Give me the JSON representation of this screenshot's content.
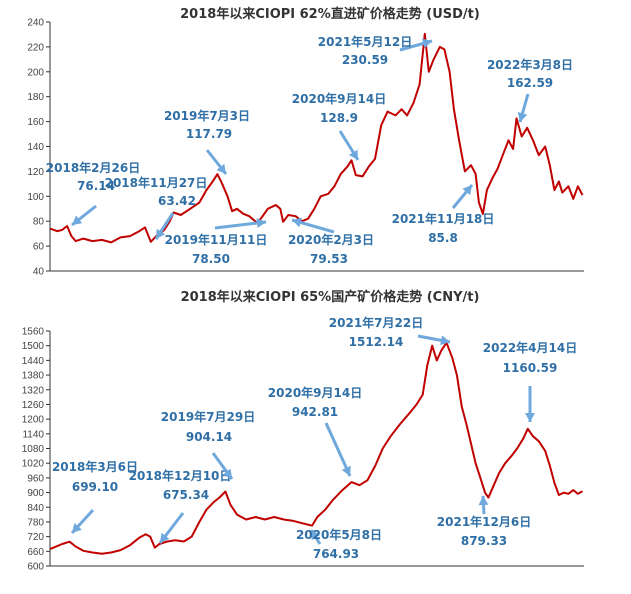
{
  "chart_data": [
    {
      "type": "line",
      "title": "2018年以来CIOPI 62%直进矿价格走势 (USD/t)",
      "xlabel": "",
      "ylabel": "",
      "ylim": [
        40,
        240
      ],
      "y_ticks": [
        40,
        60,
        80,
        100,
        120,
        140,
        160,
        180,
        200,
        220,
        240
      ],
      "x_range": [
        "2018-01-01",
        "2022-10-15"
      ],
      "grid": false,
      "series": [
        {
          "color": "#c00000",
          "points": [
            [
              "2018-01-02",
              74
            ],
            [
              "2018-01-25",
              72
            ],
            [
              "2018-02-10",
              73
            ],
            [
              "2018-02-26",
              76.14
            ],
            [
              "2018-03-12",
              68
            ],
            [
              "2018-03-26",
              64
            ],
            [
              "2018-04-20",
              66
            ],
            [
              "2018-05-20",
              64
            ],
            [
              "2018-06-20",
              65
            ],
            [
              "2018-07-20",
              63
            ],
            [
              "2018-08-20",
              67
            ],
            [
              "2018-09-20",
              68
            ],
            [
              "2018-10-20",
              72
            ],
            [
              "2018-11-08",
              75
            ],
            [
              "2018-11-27",
              63.42
            ],
            [
              "2018-12-15",
              68
            ],
            [
              "2019-01-10",
              73
            ],
            [
              "2019-01-28",
              80
            ],
            [
              "2019-02-10",
              87
            ],
            [
              "2019-03-05",
              85
            ],
            [
              "2019-04-05",
              90
            ],
            [
              "2019-05-05",
              95
            ],
            [
              "2019-05-28",
              105
            ],
            [
              "2019-06-12",
              110
            ],
            [
              "2019-07-03",
              117.79
            ],
            [
              "2019-07-15",
              112
            ],
            [
              "2019-08-05",
              100
            ],
            [
              "2019-08-20",
              88
            ],
            [
              "2019-09-05",
              90
            ],
            [
              "2019-09-25",
              86
            ],
            [
              "2019-10-15",
              84
            ],
            [
              "2019-11-11",
              78.5
            ],
            [
              "2019-11-28",
              84
            ],
            [
              "2019-12-15",
              90
            ],
            [
              "2020-01-10",
              93
            ],
            [
              "2020-01-25",
              90
            ],
            [
              "2020-02-03",
              79.53
            ],
            [
              "2020-02-20",
              85
            ],
            [
              "2020-03-15",
              84
            ],
            [
              "2020-04-05",
              80
            ],
            [
              "2020-04-25",
              82
            ],
            [
              "2020-05-15",
              90
            ],
            [
              "2020-06-05",
              100
            ],
            [
              "2020-06-30",
              102
            ],
            [
              "2020-07-20",
              108
            ],
            [
              "2020-08-10",
              118
            ],
            [
              "2020-09-01",
              124
            ],
            [
              "2020-09-14",
              128.9
            ],
            [
              "2020-09-28",
              117
            ],
            [
              "2020-10-20",
              116
            ],
            [
              "2020-11-10",
              124
            ],
            [
              "2020-11-30",
              130
            ],
            [
              "2020-12-20",
              157
            ],
            [
              "2021-01-10",
              168
            ],
            [
              "2021-02-05",
              165
            ],
            [
              "2021-02-25",
              170
            ],
            [
              "2021-03-15",
              165
            ],
            [
              "2021-04-05",
              175
            ],
            [
              "2021-04-25",
              190
            ],
            [
              "2021-05-12",
              230.59
            ],
            [
              "2021-05-25",
              200
            ],
            [
              "2021-06-10",
              210
            ],
            [
              "2021-06-30",
              220
            ],
            [
              "2021-07-15",
              218
            ],
            [
              "2021-08-01",
              200
            ],
            [
              "2021-08-15",
              170
            ],
            [
              "2021-09-01",
              145
            ],
            [
              "2021-09-20",
              120
            ],
            [
              "2021-10-10",
              125
            ],
            [
              "2021-10-25",
              118
            ],
            [
              "2021-11-05",
              95
            ],
            [
              "2021-11-18",
              85.8
            ],
            [
              "2021-12-01",
              105
            ],
            [
              "2021-12-20",
              115
            ],
            [
              "2022-01-05",
              122
            ],
            [
              "2022-01-25",
              135
            ],
            [
              "2022-02-10",
              145
            ],
            [
              "2022-02-25",
              138
            ],
            [
              "2022-03-08",
              162.59
            ],
            [
              "2022-03-25",
              148
            ],
            [
              "2022-04-12",
              155
            ],
            [
              "2022-05-01",
              145
            ],
            [
              "2022-05-20",
              133
            ],
            [
              "2022-06-10",
              140
            ],
            [
              "2022-06-25",
              125
            ],
            [
              "2022-07-10",
              105
            ],
            [
              "2022-07-25",
              112
            ],
            [
              "2022-08-05",
              103
            ],
            [
              "2022-08-25",
              108
            ],
            [
              "2022-09-10",
              98
            ],
            [
              "2022-09-25",
              108
            ],
            [
              "2022-10-10",
              101
            ]
          ]
        }
      ],
      "annotations": [
        {
          "date": "2018年2月26日",
          "value": "76.14",
          "x": "2018-02-26",
          "y": 76.14
        },
        {
          "date": "2018年11月27日",
          "value": "63.42",
          "x": "2018-11-27",
          "y": 63.42
        },
        {
          "date": "2019年7月3日",
          "value": "117.79",
          "x": "2019-07-03",
          "y": 117.79
        },
        {
          "date": "2019年11月11日",
          "value": "78.50",
          "x": "2019-11-11",
          "y": 78.5
        },
        {
          "date": "2020年2月3日",
          "value": "79.53",
          "x": "2020-02-03",
          "y": 79.53
        },
        {
          "date": "2020年9月14日",
          "value": "128.9",
          "x": "2020-09-14",
          "y": 128.9
        },
        {
          "date": "2021年5月12日",
          "value": "230.59",
          "x": "2021-05-12",
          "y": 230.59
        },
        {
          "date": "2021年11月18日",
          "value": "85.8",
          "x": "2021-11-18",
          "y": 85.8
        },
        {
          "date": "2022年3月8日",
          "value": "162.59",
          "x": "2022-03-08",
          "y": 162.59
        }
      ]
    },
    {
      "type": "line",
      "title": "2018年以来CIOPI 65%国产矿价格走势 (CNY/t)",
      "xlabel": "",
      "ylabel": "",
      "ylim": [
        600,
        1560
      ],
      "y_ticks": [
        600,
        660,
        720,
        780,
        840,
        900,
        960,
        1020,
        1080,
        1140,
        1200,
        1260,
        1320,
        1380,
        1440,
        1500,
        1560
      ],
      "x_range": [
        "2018-01-01",
        "2022-10-15"
      ],
      "grid": false,
      "series": [
        {
          "color": "#c00000",
          "points": [
            [
              "2018-01-02",
              670
            ],
            [
              "2018-02-10",
              690
            ],
            [
              "2018-03-06",
              699.1
            ],
            [
              "2018-03-25",
              680
            ],
            [
              "2018-04-20",
              662
            ],
            [
              "2018-05-20",
              655
            ],
            [
              "2018-06-20",
              650
            ],
            [
              "2018-07-20",
              655
            ],
            [
              "2018-08-20",
              665
            ],
            [
              "2018-09-20",
              685
            ],
            [
              "2018-10-20",
              715
            ],
            [
              "2018-11-10",
              730
            ],
            [
              "2018-11-25",
              720
            ],
            [
              "2018-12-10",
              675.34
            ],
            [
              "2018-12-25",
              690
            ],
            [
              "2019-01-20",
              700
            ],
            [
              "2019-02-15",
              705
            ],
            [
              "2019-03-15",
              700
            ],
            [
              "2019-04-10",
              720
            ],
            [
              "2019-05-05",
              780
            ],
            [
              "2019-05-28",
              830
            ],
            [
              "2019-06-20",
              860
            ],
            [
              "2019-07-10",
              880
            ],
            [
              "2019-07-29",
              904.14
            ],
            [
              "2019-08-15",
              850
            ],
            [
              "2019-09-05",
              810
            ],
            [
              "2019-10-05",
              790
            ],
            [
              "2019-11-05",
              800
            ],
            [
              "2019-12-05",
              790
            ],
            [
              "2020-01-05",
              800
            ],
            [
              "2020-02-05",
              790
            ],
            [
              "2020-03-05",
              785
            ],
            [
              "2020-04-05",
              775
            ],
            [
              "2020-05-08",
              764.93
            ],
            [
              "2020-05-25",
              800
            ],
            [
              "2020-06-20",
              830
            ],
            [
              "2020-07-15",
              870
            ],
            [
              "2020-08-15",
              910
            ],
            [
              "2020-09-14",
              942.81
            ],
            [
              "2020-10-10",
              930
            ],
            [
              "2020-11-05",
              950
            ],
            [
              "2020-12-01",
              1010
            ],
            [
              "2020-12-25",
              1080
            ],
            [
              "2021-01-20",
              1130
            ],
            [
              "2021-02-20",
              1180
            ],
            [
              "2021-03-20",
              1220
            ],
            [
              "2021-04-15",
              1260
            ],
            [
              "2021-05-05",
              1300
            ],
            [
              "2021-05-20",
              1420
            ],
            [
              "2021-06-05",
              1500
            ],
            [
              "2021-06-20",
              1440
            ],
            [
              "2021-07-05",
              1480
            ],
            [
              "2021-07-22",
              1512.14
            ],
            [
              "2021-08-10",
              1450
            ],
            [
              "2021-08-25",
              1380
            ],
            [
              "2021-09-10",
              1250
            ],
            [
              "2021-09-25",
              1180
            ],
            [
              "2021-10-10",
              1100
            ],
            [
              "2021-10-25",
              1020
            ],
            [
              "2021-11-10",
              960
            ],
            [
              "2021-11-25",
              900
            ],
            [
              "2021-12-06",
              879.33
            ],
            [
              "2021-12-20",
              920
            ],
            [
              "2022-01-10",
              980
            ],
            [
              "2022-01-30",
              1020
            ],
            [
              "2022-02-20",
              1050
            ],
            [
              "2022-03-10",
              1080
            ],
            [
              "2022-03-30",
              1120
            ],
            [
              "2022-04-14",
              1160.59
            ],
            [
              "2022-05-01",
              1130
            ],
            [
              "2022-05-20",
              1110
            ],
            [
              "2022-06-10",
              1070
            ],
            [
              "2022-06-25",
              1010
            ],
            [
              "2022-07-10",
              940
            ],
            [
              "2022-07-25",
              890
            ],
            [
              "2022-08-10",
              900
            ],
            [
              "2022-08-25",
              895
            ],
            [
              "2022-09-10",
              910
            ],
            [
              "2022-09-25",
              895
            ],
            [
              "2022-10-10",
              905
            ]
          ]
        }
      ],
      "annotations": [
        {
          "date": "2018年3月6日",
          "value": "699.10",
          "x": "2018-03-06",
          "y": 699.1
        },
        {
          "date": "2018年12月10日",
          "value": "675.34",
          "x": "2018-12-10",
          "y": 675.34
        },
        {
          "date": "2019年7月29日",
          "value": "904.14",
          "x": "2019-07-29",
          "y": 904.14
        },
        {
          "date": "2020年5月8日",
          "value": "764.93",
          "x": "2020-05-08",
          "y": 764.93
        },
        {
          "date": "2020年9月14日",
          "value": "942.81",
          "x": "2020-09-14",
          "y": 942.81
        },
        {
          "date": "2021年7月22日",
          "value": "1512.14",
          "x": "2021-07-22",
          "y": 1512.14
        },
        {
          "date": "2021年12月6日",
          "value": "879.33",
          "x": "2021-12-06",
          "y": 879.33
        },
        {
          "date": "2022年4月14日",
          "value": "1160.59",
          "x": "2022-04-14",
          "y": 1160.59
        }
      ]
    }
  ]
}
